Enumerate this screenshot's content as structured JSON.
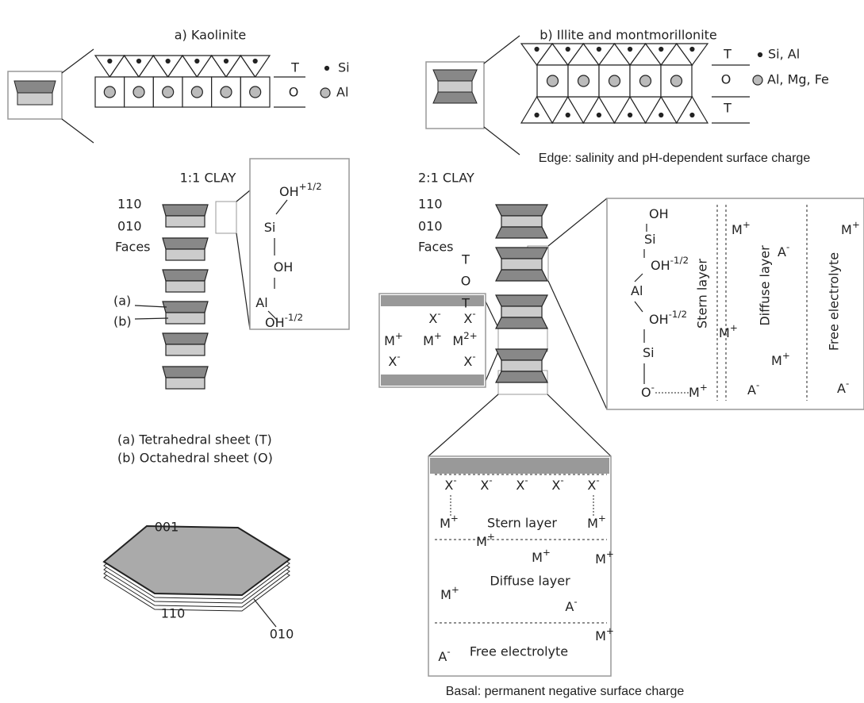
{
  "kaolinite": {
    "title": "a) Kaolinite",
    "legend": [
      {
        "sheet": "T",
        "atom": "Si"
      },
      {
        "sheet": "O",
        "atom": "Al"
      }
    ],
    "clay": "1:1 CLAY",
    "faces": [
      "110",
      "010",
      "Faces"
    ],
    "sheets": [
      "(a)",
      "(b)"
    ],
    "edge_inset": [
      {
        "t": "OH",
        "sup": "+1/2"
      },
      {
        "t": "Si"
      },
      {
        "t": "OH"
      },
      {
        "t": "Al"
      },
      {
        "t": "OH",
        "sup": "-1/2"
      }
    ],
    "captions": [
      "(a) Tetrahedral sheet (T)",
      "(b) Octahedral sheet (O)"
    ],
    "crystal_faces": [
      "001",
      "110",
      "010"
    ]
  },
  "illite": {
    "title": "b) Illite and montmorillonite",
    "legend": [
      {
        "sheet": "T",
        "atom": "Si, Al"
      },
      {
        "sheet": "O",
        "atom": "Al, Mg, Fe"
      },
      {
        "sheet": "T"
      }
    ],
    "edge_caption": "Edge: salinity and pH-dependent surface charge",
    "clay": "2:1 CLAY",
    "faces": [
      "110",
      "010",
      "Faces"
    ],
    "layers": [
      "T",
      "O",
      "T"
    ],
    "interlayer": [
      {
        "t": "X",
        "sup": "-"
      },
      {
        "t": "X",
        "sup": "-"
      },
      {
        "t": "M",
        "sup": "+"
      },
      {
        "t": "M",
        "sup": "+"
      },
      {
        "t": "M",
        "sup": "2+"
      },
      {
        "t": "X",
        "sup": "-"
      },
      {
        "t": "X",
        "sup": "-"
      }
    ],
    "edge_inset": {
      "atoms": [
        {
          "t": "OH"
        },
        {
          "t": "Si"
        },
        {
          "t": "OH",
          "sup": "-1/2"
        },
        {
          "t": "Al"
        },
        {
          "t": "OH",
          "sup": "-1/2"
        },
        {
          "t": "Si"
        },
        {
          "t": "O",
          "sup": "-"
        }
      ],
      "ions": [
        {
          "t": "M",
          "sup": "+"
        },
        {
          "t": "M",
          "sup": "+"
        },
        {
          "t": "A",
          "sup": "-"
        },
        {
          "t": "M",
          "sup": "+"
        },
        {
          "t": "M",
          "sup": "+"
        },
        {
          "t": "A",
          "sup": "-"
        },
        {
          "t": "M",
          "sup": "+"
        },
        {
          "t": "A",
          "sup": "-"
        }
      ],
      "stern": "Stern layer",
      "diffuse": "Diffuse layer",
      "free": "Free electrolyte"
    },
    "basal_inset": {
      "ions": [
        {
          "t": "X",
          "sup": "-"
        },
        {
          "t": "X",
          "sup": "-"
        },
        {
          "t": "X",
          "sup": "-"
        },
        {
          "t": "X",
          "sup": "-"
        },
        {
          "t": "X",
          "sup": "-"
        },
        {
          "t": "M",
          "sup": "+"
        },
        {
          "t": "M",
          "sup": "+"
        },
        {
          "t": "M",
          "sup": "+"
        },
        {
          "t": "M",
          "sup": "+"
        },
        {
          "t": "M",
          "sup": "+"
        },
        {
          "t": "M",
          "sup": "+"
        },
        {
          "t": "A",
          "sup": "-"
        },
        {
          "t": "M",
          "sup": "+"
        },
        {
          "t": "A",
          "sup": "-"
        }
      ],
      "stern": "Stern layer",
      "diffuse": "Diffuse layer",
      "free": "Free electrolyte"
    },
    "basal_caption": "Basal: permanent negative surface charge"
  }
}
